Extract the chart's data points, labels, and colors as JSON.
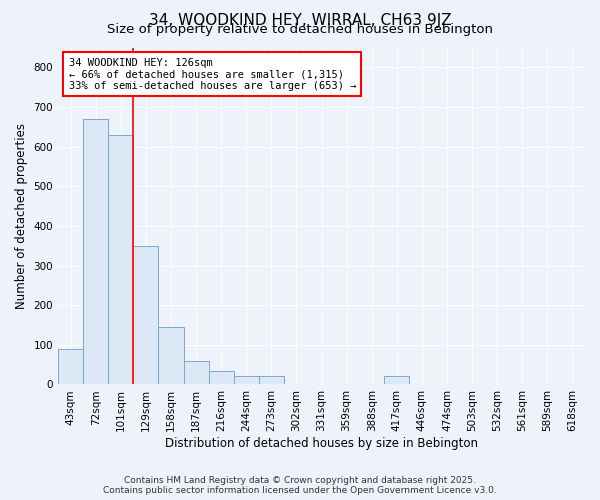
{
  "title": "34, WOODKIND HEY, WIRRAL, CH63 9JZ",
  "subtitle": "Size of property relative to detached houses in Bebington",
  "xlabel": "Distribution of detached houses by size in Bebington",
  "ylabel": "Number of detached properties",
  "categories": [
    "43sqm",
    "72sqm",
    "101sqm",
    "129sqm",
    "158sqm",
    "187sqm",
    "216sqm",
    "244sqm",
    "273sqm",
    "302sqm",
    "331sqm",
    "359sqm",
    "388sqm",
    "417sqm",
    "446sqm",
    "474sqm",
    "503sqm",
    "532sqm",
    "561sqm",
    "589sqm",
    "618sqm"
  ],
  "values": [
    90,
    670,
    630,
    350,
    145,
    60,
    35,
    22,
    22,
    0,
    0,
    0,
    0,
    22,
    0,
    0,
    0,
    0,
    0,
    0,
    0
  ],
  "bar_color": "#dce8f5",
  "bar_edge_color": "#7aaaca",
  "red_line_index": 3,
  "annotation_line1": "34 WOODKIND HEY: 126sqm",
  "annotation_line2": "← 66% of detached houses are smaller (1,315)",
  "annotation_line3": "33% of semi-detached houses are larger (653) →",
  "ylim": [
    0,
    850
  ],
  "yticks": [
    0,
    100,
    200,
    300,
    400,
    500,
    600,
    700,
    800
  ],
  "footer_line1": "Contains HM Land Registry data © Crown copyright and database right 2025.",
  "footer_line2": "Contains public sector information licensed under the Open Government Licence v3.0.",
  "background_color": "#eef2fa",
  "grid_color": "#ffffff",
  "title_fontsize": 11,
  "subtitle_fontsize": 9.5,
  "axis_label_fontsize": 8.5,
  "tick_fontsize": 7.5,
  "footer_fontsize": 6.5,
  "annotation_fontsize": 7.5
}
